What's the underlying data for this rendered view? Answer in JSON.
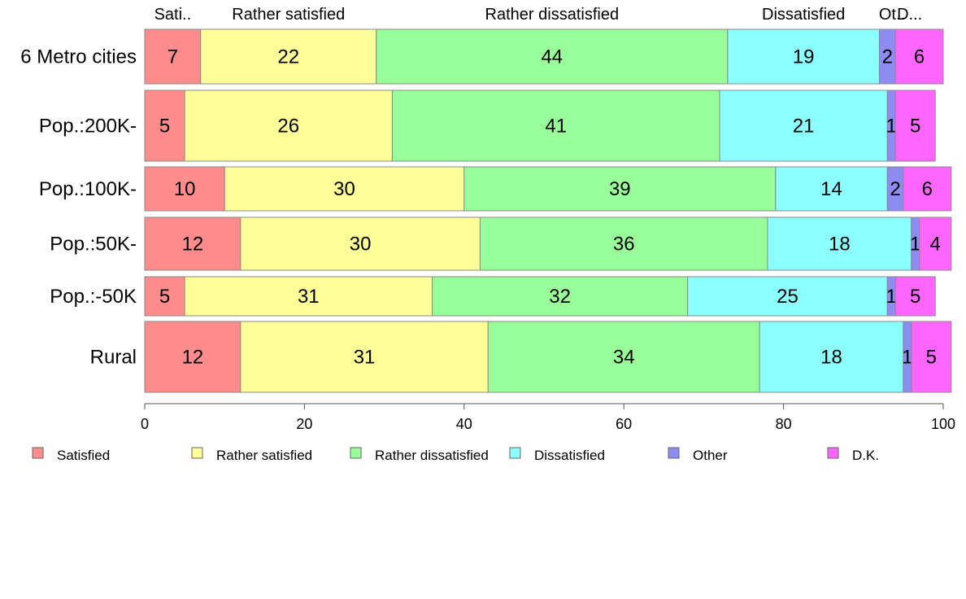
{
  "chart_data": {
    "type": "bar",
    "orientation": "horizontal",
    "stacked": true,
    "categories": [
      "6 Metro cities",
      "Pop.:200K-",
      "Pop.:100K-",
      "Pop.:50K-",
      "Pop.:-50K",
      "Rural"
    ],
    "series": [
      {
        "name": "Satisfied",
        "color": "#ff8c8c",
        "values": [
          7,
          5,
          10,
          12,
          5,
          12
        ]
      },
      {
        "name": "Rather satisfied",
        "color": "#ffff99",
        "values": [
          22,
          26,
          30,
          30,
          31,
          31
        ]
      },
      {
        "name": "Rather dissatisfied",
        "color": "#99ff99",
        "values": [
          44,
          41,
          39,
          36,
          32,
          34
        ]
      },
      {
        "name": "Dissatisfied",
        "color": "#8cffff",
        "values": [
          19,
          21,
          14,
          18,
          25,
          18
        ]
      },
      {
        "name": "Other",
        "color": "#8c8cf2",
        "values": [
          2,
          1,
          2,
          1,
          1,
          1
        ]
      },
      {
        "name": "D.K.",
        "color": "#ff66ff",
        "values": [
          6,
          5,
          6,
          4,
          5,
          5
        ]
      }
    ],
    "top_labels": [
      "Sati..",
      "Rather satisfied",
      "Rather dissatisfied",
      "Dissatisfied",
      "Ot..",
      "D..."
    ],
    "xlim": [
      0,
      100
    ],
    "xticks": [
      "0",
      "20",
      "40",
      "60",
      "80",
      "100"
    ],
    "grid": false,
    "legend_position": "bottom"
  }
}
